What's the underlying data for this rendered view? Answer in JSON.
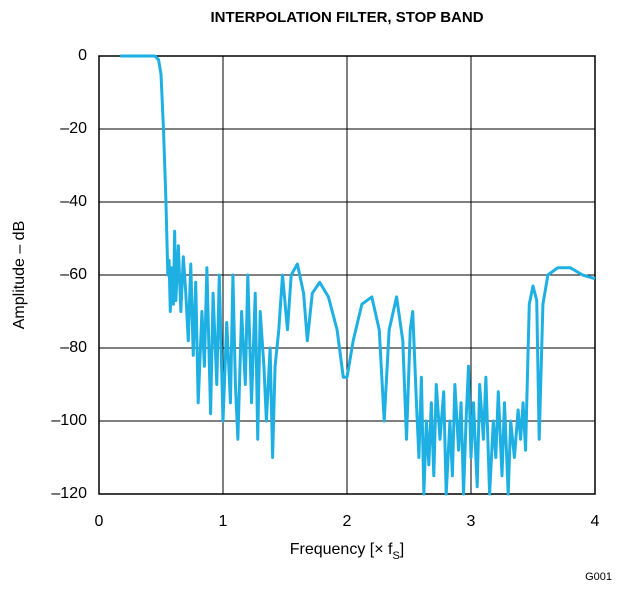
{
  "chart_data": {
    "type": "line",
    "title": "INTERPOLATION FILTER, STOP BAND",
    "y_label": "Amplitude – dB",
    "x_label": "Frequency [× f",
    "x_label_sub": "S",
    "x_label_end": "]",
    "note": "G001",
    "color": "#1fb0e3",
    "grid": true,
    "xlim": [
      0,
      4
    ],
    "xticks": [
      0,
      1,
      2,
      3,
      4
    ],
    "ylim": [
      -120,
      0
    ],
    "yticks": [
      {
        "value": -120,
        "label": "–120"
      },
      {
        "value": -100,
        "label": "–100"
      },
      {
        "value": -80,
        "label": "–80"
      },
      {
        "value": -60,
        "label": "–60"
      },
      {
        "value": -40,
        "label": "–40"
      },
      {
        "value": -20,
        "label": "–20"
      },
      0
    ],
    "x": [
      0.17,
      0.3,
      0.45,
      0.48,
      0.5,
      0.52,
      0.54,
      0.555,
      0.565,
      0.575,
      0.585,
      0.6,
      0.61,
      0.62,
      0.64,
      0.66,
      0.68,
      0.7,
      0.72,
      0.74,
      0.76,
      0.78,
      0.8,
      0.83,
      0.85,
      0.87,
      0.9,
      0.92,
      0.95,
      0.97,
      1.0,
      1.03,
      1.06,
      1.08,
      1.1,
      1.12,
      1.15,
      1.18,
      1.2,
      1.23,
      1.26,
      1.28,
      1.3,
      1.33,
      1.35,
      1.38,
      1.4,
      1.42,
      1.45,
      1.48,
      1.52,
      1.55,
      1.6,
      1.65,
      1.68,
      1.72,
      1.78,
      1.85,
      1.92,
      1.97,
      2.0,
      2.05,
      2.12,
      2.2,
      2.26,
      2.3,
      2.34,
      2.4,
      2.45,
      2.48,
      2.51,
      2.53,
      2.56,
      2.58,
      2.6,
      2.62,
      2.64,
      2.66,
      2.68,
      2.7,
      2.72,
      2.75,
      2.78,
      2.8,
      2.83,
      2.85,
      2.87,
      2.9,
      2.92,
      2.94,
      2.96,
      2.98,
      3.0,
      3.02,
      3.05,
      3.07,
      3.1,
      3.12,
      3.15,
      3.18,
      3.2,
      3.22,
      3.25,
      3.27,
      3.3,
      3.32,
      3.35,
      3.38,
      3.4,
      3.42,
      3.44,
      3.47,
      3.5,
      3.53,
      3.55,
      3.58,
      3.62,
      3.7,
      3.8,
      3.9,
      4.0
    ],
    "values": [
      0,
      0,
      0,
      -1,
      -5,
      -20,
      -40,
      -60,
      -56,
      -70,
      -58,
      -68,
      -48,
      -67,
      -52,
      -70,
      -55,
      -65,
      -78,
      -57,
      -82,
      -62,
      -95,
      -70,
      -85,
      -58,
      -98,
      -65,
      -90,
      -60,
      -100,
      -73,
      -95,
      -60,
      -90,
      -105,
      -70,
      -90,
      -60,
      -95,
      -65,
      -105,
      -70,
      -85,
      -100,
      -80,
      -110,
      -85,
      -75,
      -60,
      -75,
      -60,
      -57,
      -65,
      -78,
      -65,
      -62,
      -66,
      -75,
      -88,
      -88,
      -78,
      -68,
      -66,
      -75,
      -100,
      -75,
      -66,
      -78,
      -105,
      -75,
      -70,
      -95,
      -110,
      -88,
      -120,
      -100,
      -112,
      -95,
      -115,
      -90,
      -105,
      -92,
      -120,
      -100,
      -115,
      -90,
      -108,
      -95,
      -120,
      -100,
      -85,
      -110,
      -95,
      -118,
      -90,
      -105,
      -88,
      -120,
      -100,
      -110,
      -92,
      -115,
      -95,
      -120,
      -100,
      -110,
      -97,
      -105,
      -95,
      -108,
      -68,
      -63,
      -67,
      -105,
      -68,
      -60,
      -58,
      -58,
      -60,
      -61
    ]
  }
}
